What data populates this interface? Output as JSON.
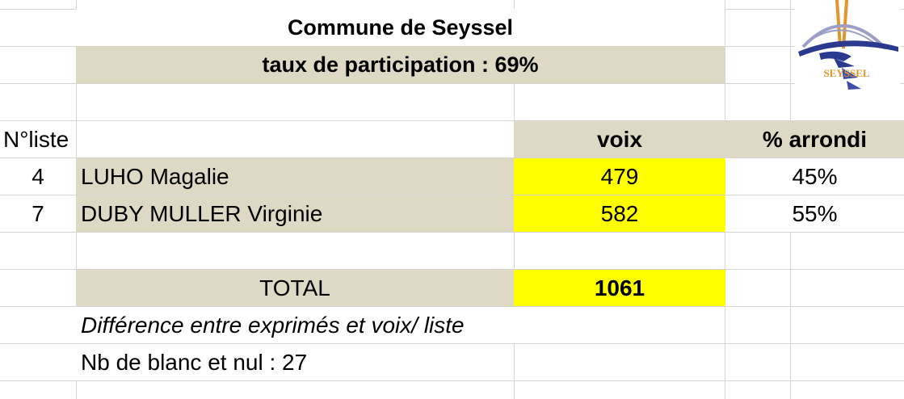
{
  "sheet": {
    "title": "Commune de Seyssel",
    "participation": "taux de participation : 69%",
    "headers": {
      "list_no": "N°liste",
      "votes": "voix",
      "percent": "% arrondi"
    },
    "rows": [
      {
        "list_no": "4",
        "name": "LUHO Magalie",
        "votes": "479",
        "percent": "45%"
      },
      {
        "list_no": "7",
        "name": "DUBY MULLER Virginie",
        "votes": "582",
        "percent": "55%"
      }
    ],
    "total_label": "TOTAL",
    "total_value": "1061",
    "difference_note": "Différence entre exprimés et voix/ liste",
    "blank_null": "Nb de blanc et nul : 27"
  },
  "logo": {
    "text": "SEYSSEL",
    "colors": {
      "blue": "#2b3a8f",
      "orange": "#e0962a",
      "lavender": "#9d9ec8"
    }
  },
  "colors": {
    "tan": "#ddd9c4",
    "yellow": "#ffff00",
    "gridline": "#d4d4d4"
  }
}
